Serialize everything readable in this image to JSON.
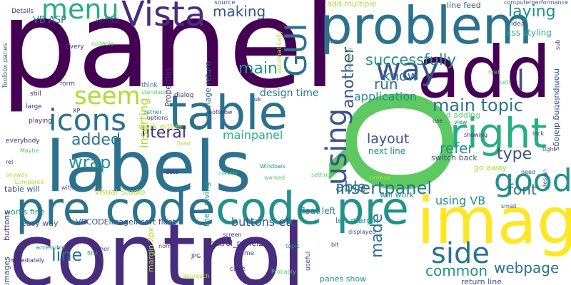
{
  "palette": {
    "dark_purple": "#440154",
    "indigo": "#472d7b",
    "slate_blue": "#3b528b",
    "steel_blue": "#2c728e",
    "teal": "#21918c",
    "sea_green": "#28ae80",
    "green": "#5ec962",
    "lime": "#addc30",
    "yellow": "#fde725"
  },
  "words": [
    {
      "text": "panel",
      "color": "#440154"
    },
    {
      "text": "Q",
      "color": "#5ec962"
    },
    {
      "text": "control",
      "color": "#472d7b"
    },
    {
      "text": "labels",
      "color": "#2c728e"
    },
    {
      "text": "add",
      "color": "#440154"
    },
    {
      "text": "image",
      "color": "#fde725"
    },
    {
      "text": "problem",
      "color": "#2c728e"
    },
    {
      "text": "table",
      "color": "#2c728e"
    },
    {
      "text": "pre code",
      "color": "#2c728e"
    },
    {
      "text": "code pre",
      "color": "#21918c"
    },
    {
      "text": "right",
      "color": "#28ae80"
    },
    {
      "text": "Vista",
      "color": "#472d7b"
    },
    {
      "text": "way",
      "color": "#3b528b"
    },
    {
      "text": "menu",
      "color": "#28ae80"
    },
    {
      "text": "GUI",
      "color": "#2c728e"
    },
    {
      "text": "icons",
      "color": "#2c728e"
    },
    {
      "text": "seem",
      "color": "#addc30"
    },
    {
      "text": "using",
      "color": "#3b528b"
    },
    {
      "text": "good",
      "color": "#21918c"
    },
    {
      "text": "side",
      "color": "#2c728e"
    },
    {
      "text": "l",
      "color": "#3b528b"
    },
    {
      "text": "main topic",
      "color": "#2c728e"
    },
    {
      "text": "insertpanel",
      "color": "#2c728e"
    },
    {
      "text": "successfully",
      "color": "#21918c"
    },
    {
      "text": "layout",
      "color": "#3b528b"
    },
    {
      "text": "webpage",
      "color": "#2c728e"
    },
    {
      "text": "line",
      "color": "#2c728e"
    },
    {
      "text": "main",
      "color": "#21918c"
    },
    {
      "text": "wrap",
      "color": "#21918c"
    },
    {
      "text": "added",
      "color": "#2c728e"
    },
    {
      "text": "literal",
      "color": "#472d7b"
    },
    {
      "text": "refer",
      "color": "#21918c"
    },
    {
      "text": "type",
      "color": "#3b528b"
    },
    {
      "text": "making",
      "color": "#3b528b"
    },
    {
      "text": "laying",
      "color": "#21918c"
    },
    {
      "text": "know",
      "color": "#2c728e"
    },
    {
      "text": "run",
      "color": "#2c728e"
    },
    {
      "text": "another",
      "color": "#3b528b"
    },
    {
      "text": "made",
      "color": "#2c728e"
    },
    {
      "text": "able",
      "color": "#2c728e"
    },
    {
      "text": "font",
      "color": "#2c728e"
    },
    {
      "text": "mainpanel",
      "color": "#28ae80"
    },
    {
      "text": "common",
      "color": "#21918c"
    },
    {
      "text": "application",
      "color": "#21918c"
    },
    {
      "text": "design time",
      "color": "#2c728e"
    },
    {
      "text": "buttons etc",
      "color": "#3b528b"
    },
    {
      "text": "inserting",
      "color": "#addc30"
    },
    {
      "text": "using VB",
      "color": "#21918c"
    },
    {
      "text": "VB ASP",
      "color": "#2c728e"
    },
    {
      "text": "css styling",
      "color": "#28ae80"
    },
    {
      "text": "tried adding",
      "color": "#5ec962"
    },
    {
      "text": "next line",
      "color": "#21918c"
    },
    {
      "text": "float left",
      "color": "#2c728e"
    },
    {
      "text": "table will",
      "color": "#3b528b"
    },
    {
      "text": "works fine",
      "color": "#21918c"
    },
    {
      "text": "easy way",
      "color": "#3b528b"
    },
    {
      "text": "VBCODEimageinsert float",
      "color": "#3b528b"
    },
    {
      "text": "buttons",
      "color": "#472d7b"
    },
    {
      "text": "images",
      "color": "#3b528b"
    },
    {
      "text": "work either",
      "color": "#addc30"
    },
    {
      "text": "tried giving",
      "color": "#21918c"
    },
    {
      "text": "carriage return",
      "color": "#2c728e"
    },
    {
      "text": "Properties",
      "color": "#472d7b"
    },
    {
      "text": "margin 2px",
      "color": "#addc30"
    },
    {
      "text": "line feed",
      "color": "#3b528b"
    },
    {
      "text": "add multiple",
      "color": "#addc30"
    },
    {
      "text": "left margin",
      "color": "#21918c"
    },
    {
      "text": "will work",
      "color": "#21918c"
    },
    {
      "text": "switch back",
      "color": "#3b528b"
    },
    {
      "text": "go away",
      "color": "#addc30"
    },
    {
      "text": "return line",
      "color": "#3b528b"
    },
    {
      "text": "panes show",
      "color": "#21918c"
    },
    {
      "text": "manipulating dialogs",
      "color": "#3b528b"
    },
    {
      "text": "Visual Studio",
      "color": "#addc30"
    },
    {
      "text": "control_panel2",
      "color": "#472d7b"
    },
    {
      "text": "Toolbox panes",
      "color": "#2c728e"
    },
    {
      "text": "Details",
      "color": "#472d7b"
    },
    {
      "text": "without",
      "color": "#472d7b"
    },
    {
      "text": "source",
      "color": "#3b528b"
    },
    {
      "text": "computerperformance",
      "color": "#3b528b"
    },
    {
      "text": "idea",
      "color": "#3b528b"
    },
    {
      "text": "Every",
      "color": "#472d7b"
    },
    {
      "text": "suitable",
      "color": "#5ec962"
    },
    {
      "text": "form",
      "color": "#3b528b"
    },
    {
      "text": "still",
      "color": "#472d7b"
    },
    {
      "text": "large",
      "color": "#472d7b"
    },
    {
      "text": "XP",
      "color": "#472d7b"
    },
    {
      "text": "playing",
      "color": "#472d7b"
    },
    {
      "text": "everybody",
      "color": "#472d7b"
    },
    {
      "text": "Maybe",
      "color": "#5ec962"
    },
    {
      "text": "rel",
      "color": "#472d7b"
    },
    {
      "text": "anyway",
      "color": "#addc30"
    },
    {
      "text": "Compared",
      "color": "#addc30"
    },
    {
      "text": "within",
      "color": "#3b528b"
    },
    {
      "text": "think",
      "color": "#2c728e"
    },
    {
      "text": "standard",
      "color": "#5ec962"
    },
    {
      "text": "rather",
      "color": "#21918c"
    },
    {
      "text": "options",
      "color": "#472d7b"
    },
    {
      "text": "dialog",
      "color": "#472d7b"
    },
    {
      "text": "nofollow",
      "color": "#472d7b"
    },
    {
      "text": "liked",
      "color": "#addc30"
    },
    {
      "text": "classic",
      "color": "#5ec962"
    },
    {
      "text": "setting",
      "color": "#5ec962"
    },
    {
      "text": "Windows",
      "color": "#21918c"
    },
    {
      "text": "worked",
      "color": "#5ec962"
    },
    {
      "text": "browse",
      "color": "#addc30"
    },
    {
      "text": "showing",
      "color": "#472d7b"
    },
    {
      "text": "view",
      "color": "#2c728e"
    },
    {
      "text": "need",
      "color": "#3b528b"
    },
    {
      "text": "small",
      "color": "#3b528b"
    },
    {
      "text": "design",
      "color": "#3b528b"
    },
    {
      "text": "href",
      "color": "#5ec962"
    },
    {
      "text": "screen",
      "color": "#472d7b"
    },
    {
      "text": "accessible",
      "color": "#21918c"
    },
    {
      "text": "immediately",
      "color": "#472d7b"
    },
    {
      "text": "first",
      "color": "#21918c"
    },
    {
      "text": "minor",
      "color": "#472d7b"
    },
    {
      "text": "normal",
      "color": "#472d7b"
    },
    {
      "text": "JPG",
      "color": "#472d7b"
    },
    {
      "text": "time",
      "color": "#3b528b"
    },
    {
      "text": "code",
      "color": "#472d7b"
    },
    {
      "text": "approach",
      "color": "#addc30"
    },
    {
      "text": "Probably",
      "color": "#5ec962"
    },
    {
      "text": "topic",
      "color": "#21918c"
    },
    {
      "text": "bit",
      "color": "#472d7b"
    },
    {
      "text": "displayed",
      "color": "#3b528b"
    },
    {
      "text": "useful",
      "color": "#3b528b"
    },
    {
      "text": "automatically",
      "color": "#addc30"
    },
    {
      "text": "app",
      "color": "#3b528b"
    },
    {
      "text": "working",
      "color": "#5ec962"
    },
    {
      "text": "uk",
      "color": "#472d7b"
    },
    {
      "text": "co",
      "color": "#472d7b"
    },
    {
      "text": "data",
      "color": "#472d7b"
    },
    {
      "text": "sub",
      "color": "#472d7b"
    },
    {
      "text": "tight",
      "color": "#3b528b"
    },
    {
      "text": "lock",
      "color": "#472d7b"
    },
    {
      "text": "sets",
      "color": "#5ec962"
    },
    {
      "text": "use",
      "color": "#472d7b"
    }
  ]
}
